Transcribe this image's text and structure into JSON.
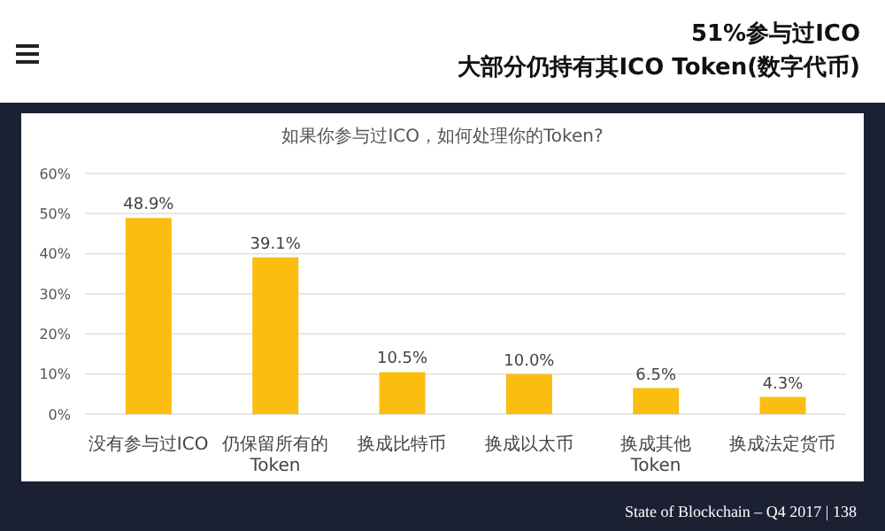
{
  "chart_data": {
    "type": "bar",
    "title": "51%参与过ICO",
    "subtitle": "大部分仍持有其ICO Token(数字代币)",
    "annotations": [
      "如果你参与过ICO，如何处理你的Token?",
      "State of Blockchain – Q4 2017 | 138"
    ],
    "categories": [
      "没有参与过ICO",
      "仍保留所有的Token",
      "换成比特币",
      "换成以太币",
      "换成其他Token",
      "换成法定货币"
    ],
    "values": [
      48.9,
      39.1,
      10.5,
      10.0,
      6.5,
      4.3
    ],
    "value_labels": [
      "48.9%",
      "39.1%",
      "10.5%",
      "10.0%",
      "6.5%",
      "4.3%"
    ],
    "color": "#fbbd0f",
    "ylim": [
      0,
      60
    ],
    "yticks": [
      {
        "value": 0,
        "label": "0%"
      },
      {
        "value": 10,
        "label": "10%"
      },
      {
        "value": 20,
        "label": "20%"
      },
      {
        "value": 30,
        "label": "30%"
      },
      {
        "value": 40,
        "label": "40%"
      },
      {
        "value": 50,
        "label": "50%"
      },
      {
        "value": 60,
        "label": "60%"
      }
    ],
    "grid": "y",
    "legend": false
  }
}
